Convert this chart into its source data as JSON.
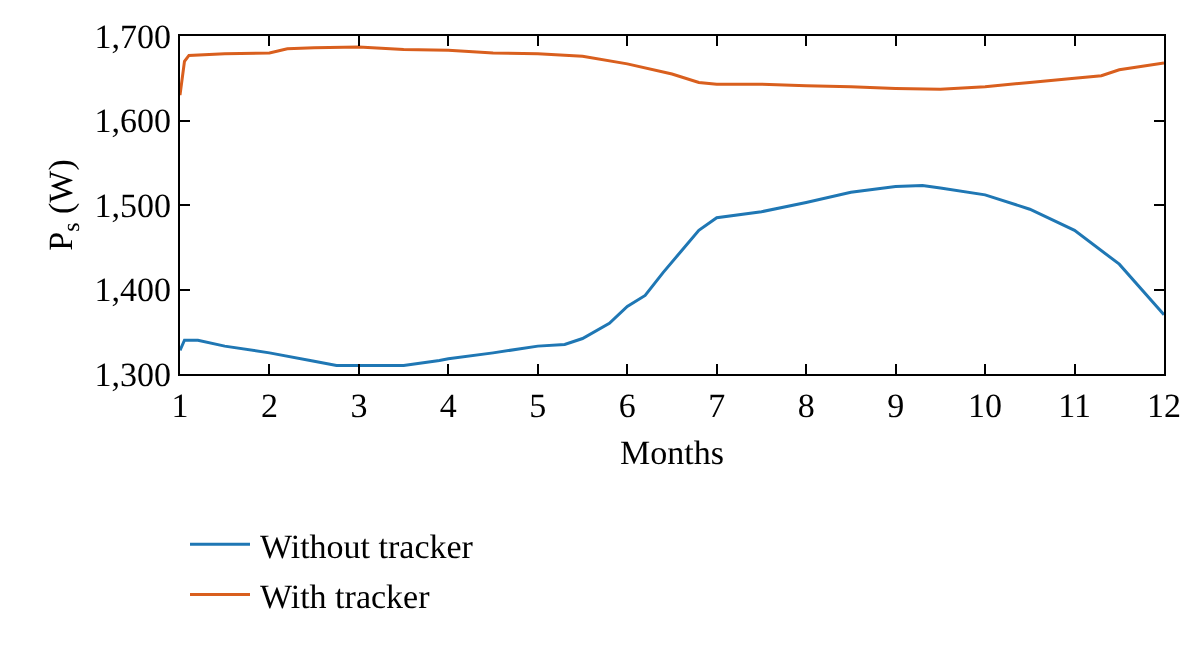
{
  "chart_data": {
    "type": "line",
    "xlabel": "Months",
    "ylabel": "P$_{s}$ (W)",
    "xlim": [
      1,
      12
    ],
    "xticks": [
      1,
      2,
      3,
      4,
      5,
      6,
      7,
      8,
      9,
      10,
      11,
      12
    ],
    "ylim": [
      1300,
      1700
    ],
    "yticks": [
      {
        "value": 1300,
        "label": "1,300"
      },
      {
        "value": 1400,
        "label": "1,400"
      },
      {
        "value": 1500,
        "label": "1,500"
      },
      {
        "value": 1600,
        "label": "1,600"
      },
      {
        "value": 1700,
        "label": "1,700"
      }
    ],
    "legend": "bottom left",
    "marker": "none",
    "line_style": "solid",
    "series": [
      {
        "name": "Without tracker",
        "color": "#1f77b4",
        "x": [
          1,
          1.05,
          1.2,
          1.5,
          2,
          2.5,
          2.75,
          3,
          3.5,
          3.9,
          4,
          4.5,
          5,
          5.3,
          5.5,
          5.8,
          6,
          6.2,
          6.4,
          6.6,
          6.8,
          7,
          7.5,
          8,
          8.5,
          9,
          9.3,
          9.5,
          10,
          10.5,
          11,
          11.5,
          12
        ],
        "values": [
          1328,
          1340,
          1340,
          1333,
          1325,
          1315,
          1310,
          1310,
          1310,
          1316,
          1318,
          1325,
          1333,
          1335,
          1342,
          1360,
          1380,
          1393,
          1420,
          1445,
          1470,
          1485,
          1492,
          1503,
          1515,
          1522,
          1523,
          1520,
          1512,
          1495,
          1470,
          1430,
          1370
        ]
      },
      {
        "name": "With tracker",
        "color": "#d95f1e",
        "x": [
          1,
          1.05,
          1.1,
          1.5,
          2,
          2.2,
          2.5,
          3,
          3.5,
          4,
          4.5,
          5,
          5.5,
          6,
          6.5,
          6.8,
          7,
          7.5,
          8,
          8.5,
          9,
          9.5,
          10,
          10.5,
          11,
          11.3,
          11.5,
          12
        ],
        "values": [
          1630,
          1670,
          1677,
          1679,
          1680,
          1685,
          1686,
          1687,
          1684,
          1683,
          1680,
          1679,
          1676,
          1667,
          1655,
          1645,
          1643,
          1643,
          1641,
          1640,
          1638,
          1637,
          1640,
          1645,
          1650,
          1653,
          1660,
          1668
        ]
      }
    ]
  }
}
